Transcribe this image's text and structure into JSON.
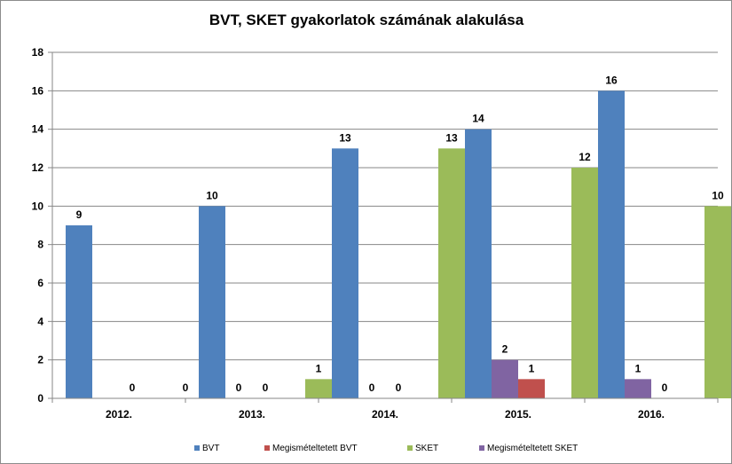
{
  "chart_data": {
    "type": "bar",
    "title": "BVT, SKET gyakorlatok számának alakulása",
    "categories": [
      "2012.",
      "2013.",
      "2014.",
      "2015.",
      "2016."
    ],
    "series": [
      {
        "name": "BVT",
        "color": "#4f81bd",
        "values": [
          9,
          10,
          13,
          14,
          16
        ]
      },
      {
        "name": "Megismételtetett BVT",
        "color": "#c0504d",
        "values": [
          0,
          0,
          0,
          1,
          0
        ]
      },
      {
        "name": "SKET",
        "color": "#9bbb59",
        "values": [
          0,
          1,
          13,
          12,
          10
        ]
      },
      {
        "name": "Megismételtetett SKET",
        "color": "#8064a2",
        "values": [
          0,
          0,
          2,
          1,
          0
        ]
      }
    ],
    "ylim": [
      0,
      18
    ],
    "yticks": [
      "0",
      "2",
      "4",
      "6",
      "8",
      "10",
      "12",
      "14",
      "16",
      "18"
    ],
    "grid": true,
    "legend": "bottom",
    "data_labels": true
  }
}
